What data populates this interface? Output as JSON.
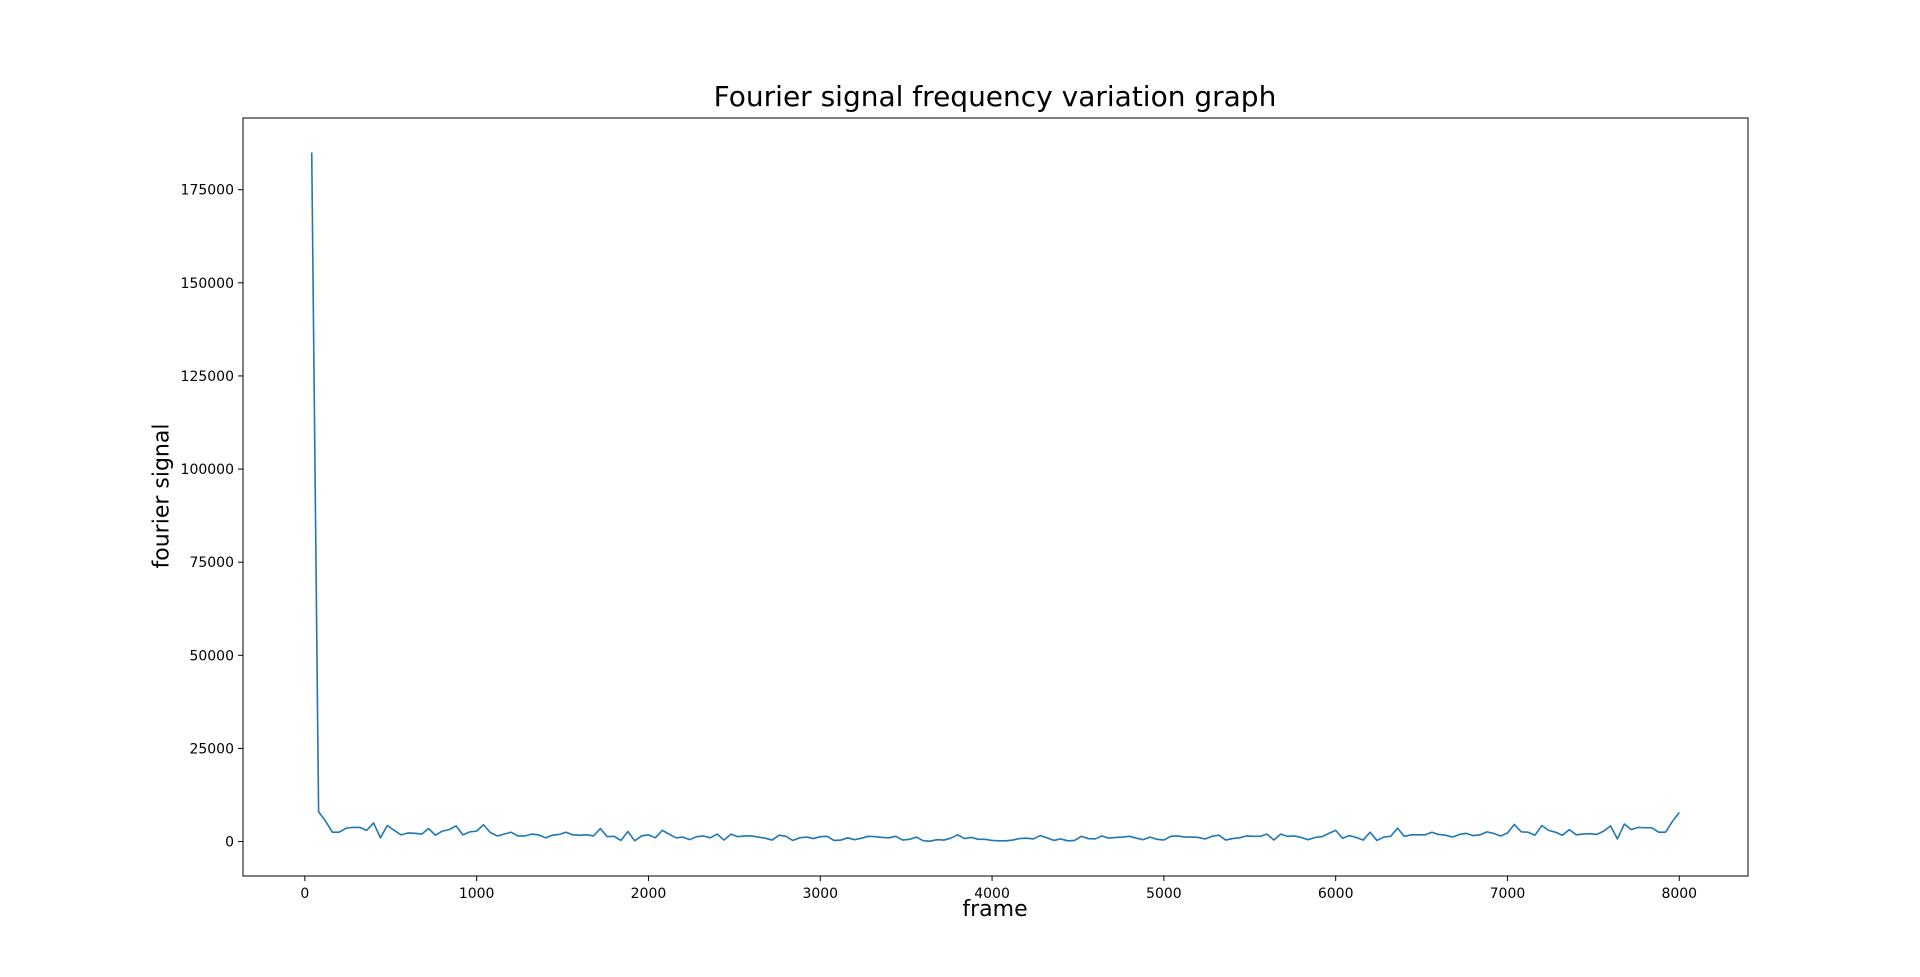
{
  "chart_data": {
    "type": "line",
    "title": "Fourier signal frequency variation graph",
    "xlabel": "frame",
    "ylabel": "fourier signal",
    "xlim": [
      -360,
      8400
    ],
    "ylim": [
      -9250,
      194250
    ],
    "xticks": [
      0,
      1000,
      2000,
      3000,
      4000,
      5000,
      6000,
      7000,
      8000
    ],
    "yticks": [
      0,
      25000,
      50000,
      75000,
      100000,
      125000,
      150000,
      175000
    ],
    "series": [
      {
        "name": "fourier signal",
        "color": "#1f77b4",
        "x": [
          40,
          80,
          120,
          160,
          200,
          240,
          280,
          320,
          360,
          400,
          440,
          480,
          520,
          560,
          600,
          640,
          680,
          720,
          760,
          800,
          840,
          880,
          920,
          960,
          1000,
          1040,
          1080,
          1120,
          1160,
          1200,
          1240,
          1280,
          1320,
          1360,
          1400,
          1440,
          1480,
          1520,
          1560,
          1600,
          1640,
          1680,
          1720,
          1760,
          1800,
          1840,
          1880,
          1920,
          1960,
          2000,
          2040,
          2080,
          2120,
          2160,
          2200,
          2240,
          2280,
          2320,
          2360,
          2400,
          2440,
          2480,
          2520,
          2560,
          2600,
          2640,
          2680,
          2720,
          2760,
          2800,
          2840,
          2880,
          2920,
          2960,
          3000,
          3040,
          3080,
          3120,
          3160,
          3200,
          3240,
          3280,
          3320,
          3360,
          3400,
          3440,
          3480,
          3520,
          3560,
          3600,
          3640,
          3680,
          3720,
          3760,
          3800,
          3840,
          3880,
          3920,
          3960,
          4000,
          4040,
          4080,
          4120,
          4160,
          4200,
          4240,
          4280,
          4320,
          4360,
          4400,
          4440,
          4480,
          4520,
          4560,
          4600,
          4640,
          4680,
          4720,
          4760,
          4800,
          4840,
          4880,
          4920,
          4960,
          5000,
          5040,
          5080,
          5120,
          5160,
          5200,
          5240,
          5280,
          5320,
          5360,
          5400,
          5440,
          5480,
          5520,
          5560,
          5600,
          5640,
          5680,
          5720,
          5760,
          5800,
          5840,
          5880,
          5920,
          5960,
          6000,
          6040,
          6080,
          6120,
          6160,
          6200,
          6240,
          6280,
          6320,
          6360,
          6400,
          6440,
          6480,
          6520,
          6560,
          6600,
          6640,
          6680,
          6720,
          6760,
          6800,
          6840,
          6880,
          6920,
          6960,
          7000,
          7040,
          7080,
          7120,
          7160,
          7200,
          7240,
          7280,
          7320,
          7360,
          7400,
          7440,
          7480,
          7520,
          7560,
          7600,
          7640,
          7680,
          7720,
          7760,
          7800,
          7840,
          7880,
          7920,
          7960,
          8000
        ],
        "y": [
          185000,
          8000,
          5500,
          2500,
          2500,
          3600,
          3800,
          3800,
          3000,
          5000,
          1000,
          4300,
          3000,
          1800,
          2300,
          2200,
          2000,
          3500,
          1700,
          2800,
          3200,
          4200,
          1800,
          2600,
          2800,
          4500,
          2400,
          1500,
          2000,
          2500,
          1500,
          1500,
          2000,
          1800,
          1000,
          1700,
          1900,
          2500,
          1800,
          1700,
          1800,
          1500,
          3500,
          1300,
          1400,
          300,
          2700,
          200,
          1500,
          1800,
          1000,
          3000,
          2000,
          1000,
          1200,
          500,
          1300,
          1500,
          1000,
          2000,
          400,
          2000,
          1300,
          1500,
          1500,
          1200,
          900,
          400,
          1700,
          1400,
          300,
          1000,
          1200,
          800,
          1300,
          1400,
          300,
          400,
          1000,
          500,
          900,
          1400,
          1300,
          1100,
          1000,
          1400,
          400,
          600,
          1200,
          200,
          100,
          500,
          400,
          900,
          1800,
          800,
          1100,
          600,
          600,
          300,
          200,
          200,
          400,
          800,
          900,
          700,
          1600,
          1000,
          300,
          700,
          200,
          300,
          1400,
          800,
          700,
          1500,
          900,
          1100,
          1200,
          1400,
          900,
          500,
          1200,
          600,
          400,
          1400,
          1500,
          1200,
          1200,
          1100,
          700,
          1400,
          1700,
          400,
          800,
          1000,
          1500,
          1400,
          1400,
          2000,
          400,
          2000,
          1400,
          1500,
          1100,
          500,
          1100,
          1300,
          2200,
          3000,
          900,
          1600,
          1100,
          400,
          2500,
          300,
          1200,
          1400,
          3600,
          1400,
          1800,
          1800,
          1800,
          2500,
          1900,
          1700,
          1200,
          1900,
          2200,
          1600,
          1800,
          2600,
          2200,
          1500,
          2300,
          4600,
          2600,
          2500,
          1700,
          4300,
          3000,
          2500,
          1700,
          3200,
          1800,
          2000,
          2100,
          1900,
          2800,
          4200,
          700,
          4700,
          3200,
          3800,
          3700,
          3700,
          2500,
          2500,
          5400,
          7800
        ]
      }
    ]
  }
}
